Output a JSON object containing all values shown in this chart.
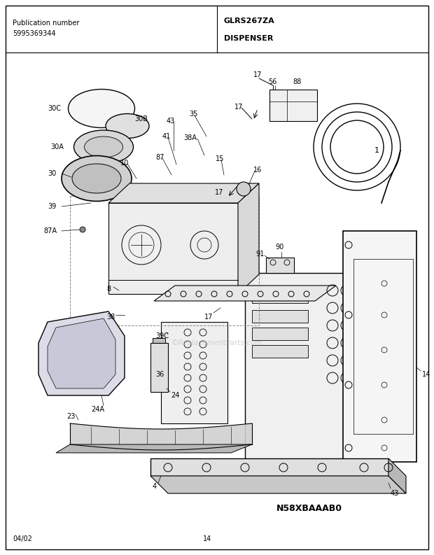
{
  "pub_number_label": "Publication number",
  "pub_number": "5995369344",
  "model": "GLRS267ZA",
  "diagram_name": "DISPENSER",
  "date": "04/02",
  "page": "14",
  "diagram_id": "N58XBAAAB0",
  "watermark": "©ReplacementParts.com",
  "bg_color": "#ffffff",
  "figsize": [
    6.2,
    7.93
  ],
  "dpi": 100
}
